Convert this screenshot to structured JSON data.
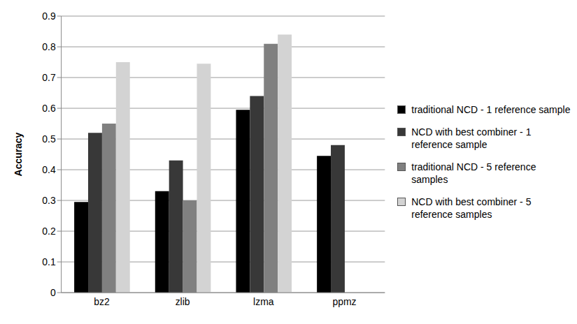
{
  "chart_data": {
    "type": "bar",
    "y_label": "Accuracy",
    "categories": [
      "bz2",
      "zlib",
      "lzma",
      "ppmz"
    ],
    "series": [
      {
        "name": "traditional NCD - 1 reference sample",
        "color": "#000000",
        "values": [
          0.295,
          0.33,
          0.595,
          0.445
        ]
      },
      {
        "name": "NCD with best combiner - 1 reference sample",
        "color": "#383838",
        "values": [
          0.52,
          0.43,
          0.64,
          0.48
        ]
      },
      {
        "name": "traditional NCD - 5 reference samples",
        "color": "#808080",
        "values": [
          0.55,
          0.3,
          0.81,
          null
        ]
      },
      {
        "name": "NCD with best combiner - 5 reference samples",
        "color": "#d3d3d3",
        "values": [
          0.75,
          0.745,
          0.84,
          null
        ]
      }
    ],
    "ylim": [
      0,
      0.9
    ],
    "yticks": [
      0,
      0.1,
      0.2,
      0.3,
      0.4,
      0.5,
      0.6,
      0.7,
      0.8,
      0.9
    ],
    "grid": true,
    "legend": "right"
  }
}
